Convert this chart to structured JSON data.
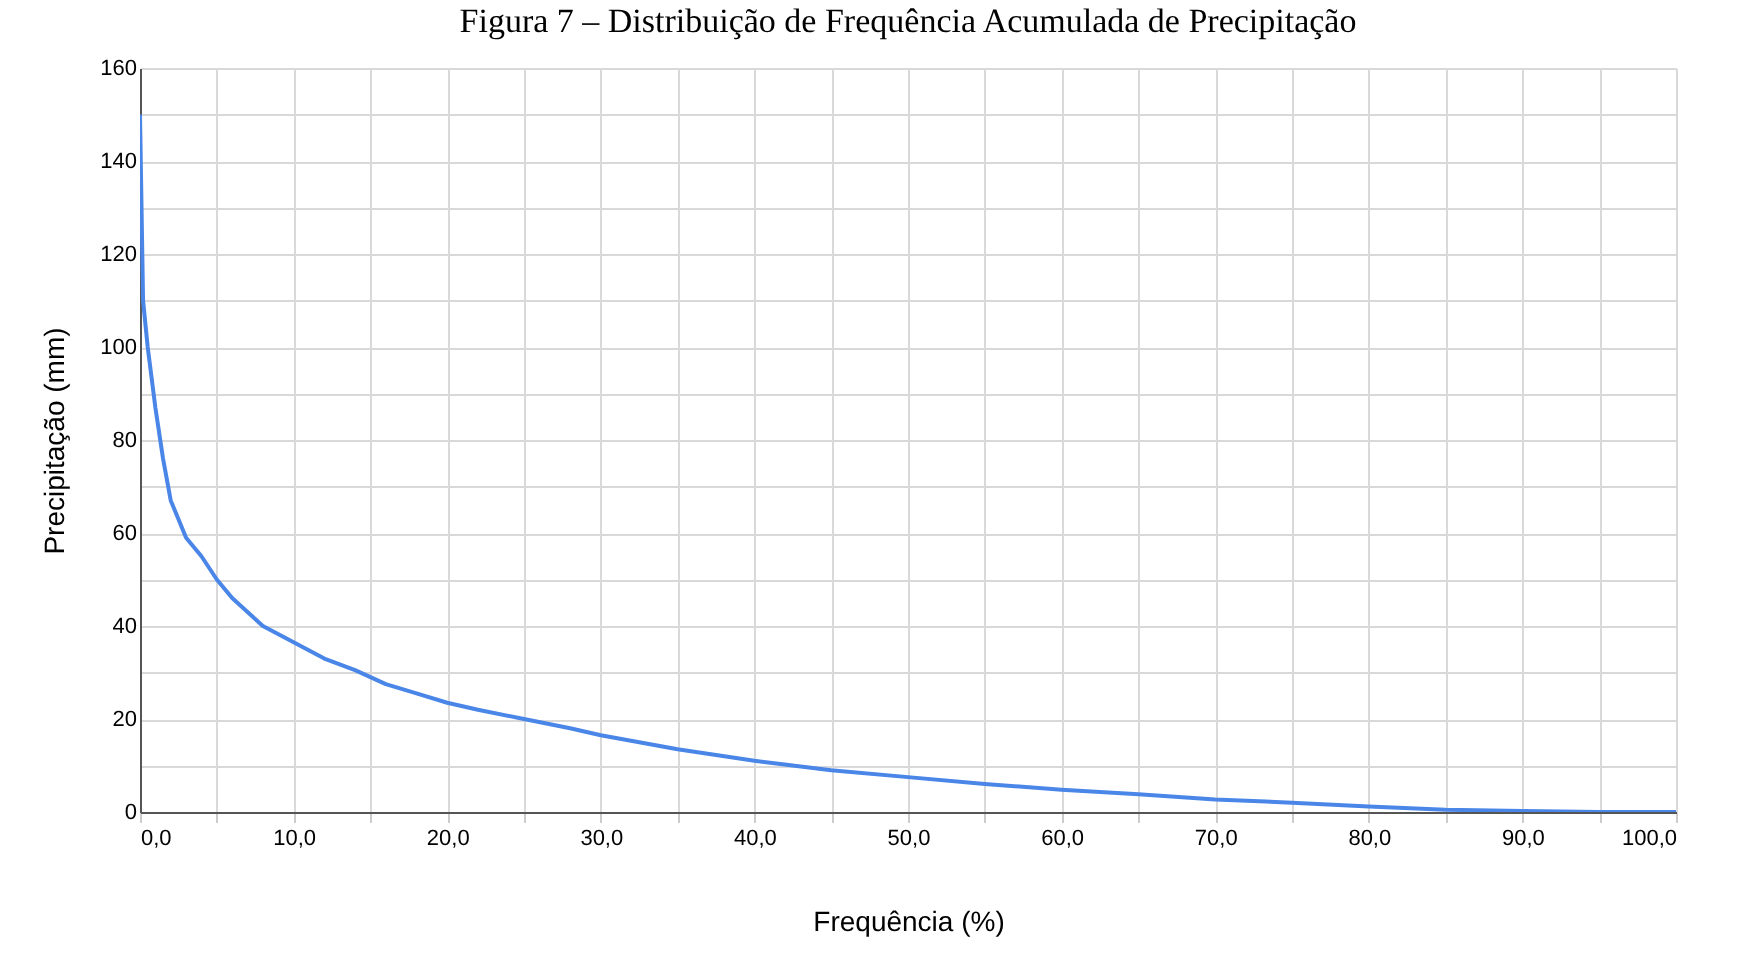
{
  "chart_data": {
    "type": "line",
    "title": "Figura 7 – Distribuição de Frequência Acumulada de Precipitação",
    "xlabel": "Frequência (%)",
    "ylabel": "Precipitação (mm)",
    "x": [
      0,
      0.2,
      0.5,
      1,
      1.5,
      2,
      3,
      4,
      5,
      6,
      7,
      8,
      10,
      12,
      14,
      16,
      18,
      20,
      22,
      25,
      28,
      30,
      35,
      40,
      45,
      50,
      55,
      60,
      65,
      70,
      75,
      80,
      85,
      90,
      95,
      100
    ],
    "series": [
      {
        "color": "#4a86e8",
        "values": [
          150,
          110,
          100,
          87,
          76,
          67,
          59,
          55,
          50,
          46,
          43,
          40,
          36.5,
          33,
          30.5,
          27.5,
          25.5,
          23.5,
          22,
          20,
          18,
          16.5,
          13.5,
          11,
          9,
          7.5,
          6,
          4.8,
          3.8,
          2.7,
          2,
          1.2,
          0.5,
          0.2,
          0,
          0
        ]
      }
    ],
    "xlim": [
      0,
      100
    ],
    "ylim": [
      0,
      160
    ],
    "xticks": [
      {
        "value": 0,
        "label": "0,0"
      },
      {
        "value": 5,
        "label": null
      },
      {
        "value": 10,
        "label": "10,0"
      },
      {
        "value": 15,
        "label": null
      },
      {
        "value": 20,
        "label": "20,0"
      },
      {
        "value": 25,
        "label": null
      },
      {
        "value": 30,
        "label": "30,0"
      },
      {
        "value": 35,
        "label": null
      },
      {
        "value": 40,
        "label": "40,0"
      },
      {
        "value": 45,
        "label": null
      },
      {
        "value": 50,
        "label": "50,0"
      },
      {
        "value": 55,
        "label": null
      },
      {
        "value": 60,
        "label": "60,0"
      },
      {
        "value": 65,
        "label": null
      },
      {
        "value": 70,
        "label": "70,0"
      },
      {
        "value": 75,
        "label": null
      },
      {
        "value": 80,
        "label": "80,0"
      },
      {
        "value": 85,
        "label": null
      },
      {
        "value": 90,
        "label": "90,0"
      },
      {
        "value": 95,
        "label": null
      },
      {
        "value": 100,
        "label": "100,0"
      }
    ],
    "yticks": [
      0,
      {
        "value": 10,
        "label": null
      },
      20,
      {
        "value": 30,
        "label": null
      },
      40,
      {
        "value": 50,
        "label": null
      },
      60,
      {
        "value": 70,
        "label": null
      },
      80,
      {
        "value": 90,
        "label": null
      },
      100,
      {
        "value": 110,
        "label": null
      },
      120,
      {
        "value": 130,
        "label": null
      },
      140,
      {
        "value": 150,
        "label": null
      },
      160
    ],
    "grid": true,
    "marker": "none",
    "line_style": "solid"
  }
}
